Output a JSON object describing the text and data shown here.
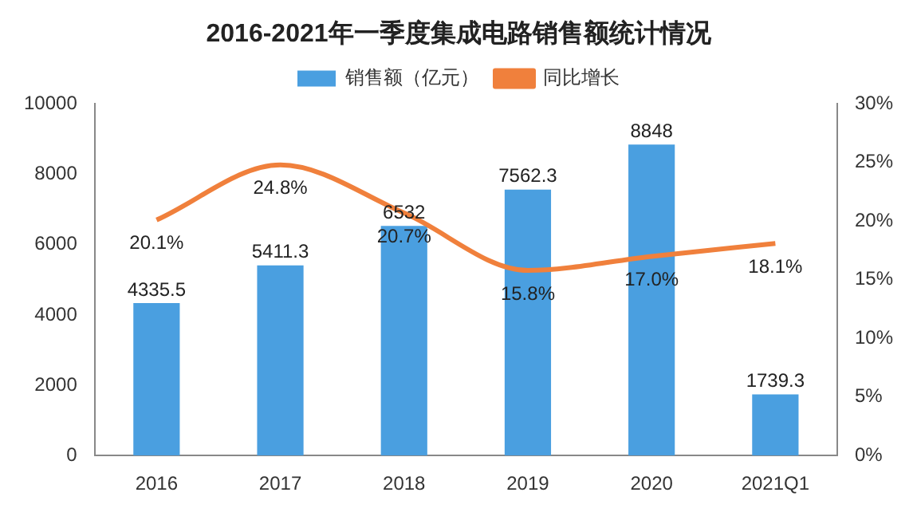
{
  "chart_data": {
    "type": "bar",
    "title": "2016-2021年一季度集成电路销售额统计情况",
    "categories": [
      "2016",
      "2017",
      "2018",
      "2019",
      "2020",
      "2021Q1"
    ],
    "series": [
      {
        "name": "销售额（亿元）",
        "color": "#4a9fe0",
        "values": [
          4335.5,
          5411.3,
          6532,
          7562.3,
          8848,
          1739.3
        ]
      },
      {
        "name": "同比增长",
        "type": "line",
        "axis": "y2",
        "color": "#f0803c",
        "values": [
          20.1,
          24.8,
          20.7,
          15.8,
          17.0,
          18.1
        ],
        "value_labels": [
          "20.1%",
          "24.8%",
          "20.7%",
          "15.8%",
          "17.0%",
          "18.1%"
        ]
      }
    ],
    "ylim": [
      0,
      10000
    ],
    "yticks": [
      0,
      2000,
      4000,
      6000,
      8000,
      10000
    ],
    "y2lim": [
      0,
      30
    ],
    "y2ticks": [
      {
        "value": 0,
        "label": "0%"
      },
      {
        "value": 5,
        "label": "5%"
      },
      {
        "value": 10,
        "label": "10%"
      },
      {
        "value": 15,
        "label": "15%"
      },
      {
        "value": 20,
        "label": "20%"
      },
      {
        "value": 25,
        "label": "25%"
      },
      {
        "value": 30,
        "label": "30%"
      }
    ],
    "legend": "top",
    "marker": "none",
    "line_style": "solid",
    "data_labels": true
  }
}
